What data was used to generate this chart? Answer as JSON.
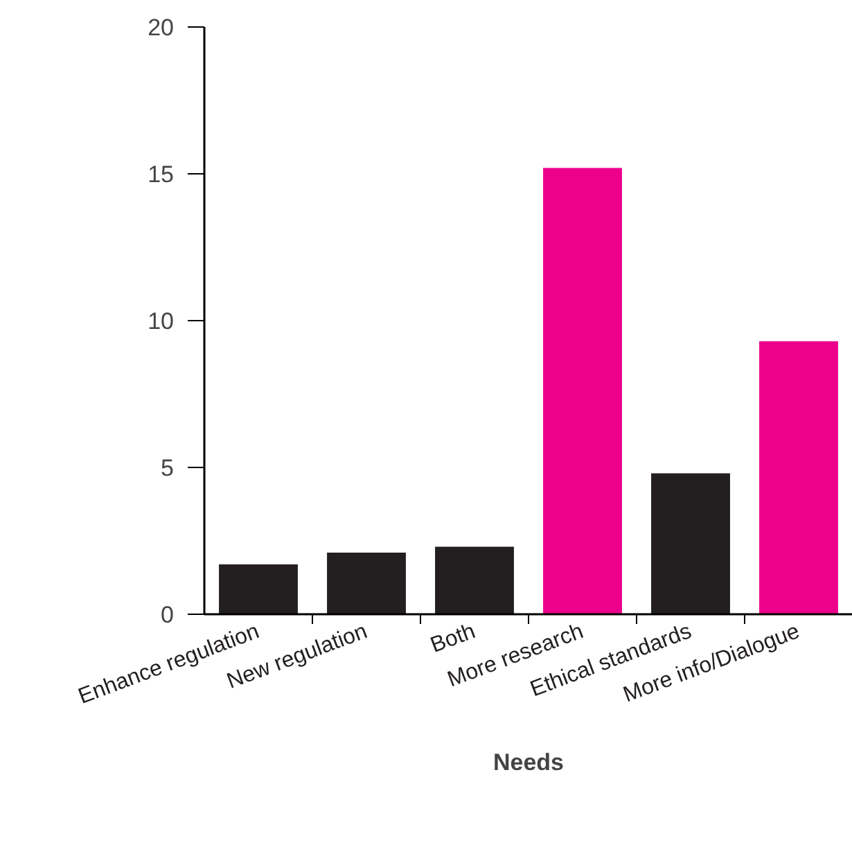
{
  "chart_data": {
    "type": "bar",
    "xlabel": "Needs",
    "categories": [
      "Enhance regulation",
      "New regulation",
      "Both",
      "More research",
      "Ethical standards",
      "More info/Dialogue"
    ],
    "values": [
      1.7,
      2.1,
      2.3,
      15.2,
      4.8,
      9.3
    ],
    "colors": [
      "#231f20",
      "#231f20",
      "#231f20",
      "#ec008c",
      "#231f20",
      "#ec008c"
    ],
    "ylim": [
      0,
      20
    ],
    "yticks": [
      0,
      5,
      10,
      15,
      20
    ]
  }
}
